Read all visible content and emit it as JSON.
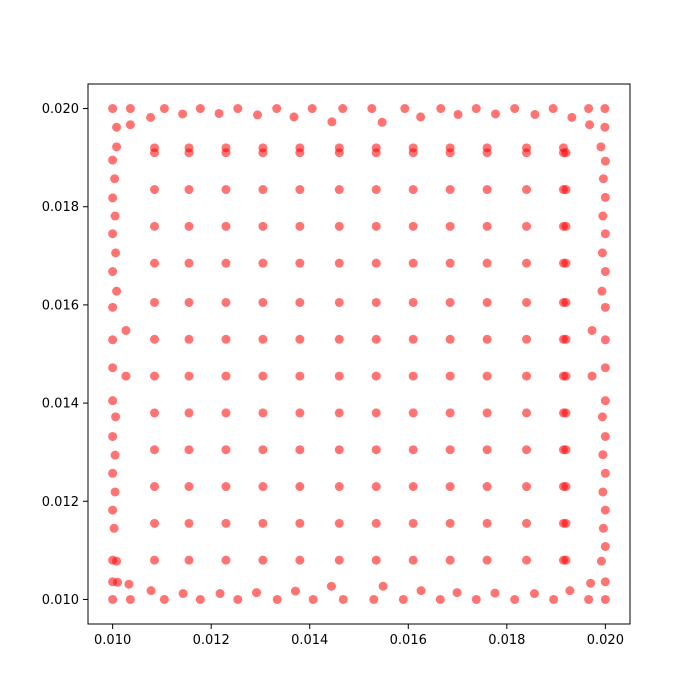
{
  "chart_data": {
    "type": "scatter",
    "title": "",
    "xlabel": "",
    "ylabel": "",
    "xlim": [
      0.0095,
      0.0205
    ],
    "ylim": [
      0.0095,
      0.0205
    ],
    "xticks": [
      "0.010",
      "0.012",
      "0.014",
      "0.016",
      "0.018",
      "0.020"
    ],
    "yticks": [
      "0.010",
      "0.012",
      "0.014",
      "0.016",
      "0.018",
      "0.020"
    ],
    "grid": false,
    "legend": "none",
    "marker_color": "#ff0000",
    "marker_alpha": 0.55,
    "series": [
      {
        "points": [
          [
            0.01,
            0.01
          ],
          [
            0.0101,
            0.01035
          ],
          [
            0.01036,
            0.01
          ],
          [
            0.01033,
            0.01031
          ],
          [
            0.01078,
            0.01018
          ],
          [
            0.01105,
            0.01
          ],
          [
            0.01143,
            0.01012
          ],
          [
            0.01178,
            0.01
          ],
          [
            0.01218,
            0.01012
          ],
          [
            0.01254,
            0.01
          ],
          [
            0.01292,
            0.01014
          ],
          [
            0.01334,
            0.01
          ],
          [
            0.01371,
            0.01017
          ],
          [
            0.01407,
            0.01
          ],
          [
            0.01444,
            0.01027
          ],
          [
            0.01468,
            0.01
          ],
          [
            0.0153,
            0.01
          ],
          [
            0.01549,
            0.01027
          ],
          [
            0.0159,
            0.01
          ],
          [
            0.01626,
            0.01018
          ],
          [
            0.01665,
            0.01
          ],
          [
            0.01699,
            0.01014
          ],
          [
            0.01738,
            0.01
          ],
          [
            0.01776,
            0.01013
          ],
          [
            0.01816,
            0.01
          ],
          [
            0.01856,
            0.01012
          ],
          [
            0.01895,
            0.01
          ],
          [
            0.01928,
            0.01018
          ],
          [
            0.01966,
            0.01
          ],
          [
            0.0197,
            0.01033
          ],
          [
            0.02,
            0.01
          ],
          [
            0.01,
            0.02
          ],
          [
            0.01036,
            0.02
          ],
          [
            0.01008,
            0.01962
          ],
          [
            0.01036,
            0.01967
          ],
          [
            0.01077,
            0.01982
          ],
          [
            0.01105,
            0.02
          ],
          [
            0.01142,
            0.01989
          ],
          [
            0.01178,
            0.02
          ],
          [
            0.01216,
            0.0199
          ],
          [
            0.01254,
            0.02
          ],
          [
            0.01294,
            0.01987
          ],
          [
            0.01333,
            0.02
          ],
          [
            0.01368,
            0.01983
          ],
          [
            0.01405,
            0.02
          ],
          [
            0.01445,
            0.01973
          ],
          [
            0.01467,
            0.02
          ],
          [
            0.01526,
            0.02
          ],
          [
            0.01547,
            0.01972
          ],
          [
            0.01593,
            0.02
          ],
          [
            0.01625,
            0.01983
          ],
          [
            0.01666,
            0.02
          ],
          [
            0.01701,
            0.01988
          ],
          [
            0.01738,
            0.02
          ],
          [
            0.01777,
            0.01989
          ],
          [
            0.01816,
            0.02
          ],
          [
            0.01857,
            0.01988
          ],
          [
            0.01894,
            0.02
          ],
          [
            0.01932,
            0.01982
          ],
          [
            0.01966,
            0.02
          ],
          [
            0.01968,
            0.01967
          ],
          [
            0.01999,
            0.02
          ],
          [
            0.01,
            0.01036
          ],
          [
            0.01,
            0.0108
          ],
          [
            0.01008,
            0.01078
          ],
          [
            0.01003,
            0.01145
          ],
          [
            0.01,
            0.01182
          ],
          [
            0.01005,
            0.01219
          ],
          [
            0.01,
            0.01257
          ],
          [
            0.01005,
            0.01294
          ],
          [
            0.01,
            0.01332
          ],
          [
            0.01006,
            0.01372
          ],
          [
            0.01,
            0.01405
          ],
          [
            0.01,
            0.01472
          ],
          [
            0.01027,
            0.01455
          ],
          [
            0.01027,
            0.01548
          ],
          [
            0.01,
            0.01529
          ],
          [
            0.01,
            0.01595
          ],
          [
            0.01008,
            0.01628
          ],
          [
            0.01,
            0.01668
          ],
          [
            0.01006,
            0.01706
          ],
          [
            0.01,
            0.01745
          ],
          [
            0.01005,
            0.01781
          ],
          [
            0.01,
            0.01818
          ],
          [
            0.01004,
            0.01857
          ],
          [
            0.01,
            0.01895
          ],
          [
            0.01008,
            0.01922
          ],
          [
            0.02,
            0.01036
          ],
          [
            0.02,
            0.01108
          ],
          [
            0.01992,
            0.01078
          ],
          [
            0.01996,
            0.01145
          ],
          [
            0.02,
            0.01182
          ],
          [
            0.01995,
            0.01219
          ],
          [
            0.02,
            0.01257
          ],
          [
            0.01995,
            0.01295
          ],
          [
            0.02,
            0.01332
          ],
          [
            0.01994,
            0.01372
          ],
          [
            0.02,
            0.01405
          ],
          [
            0.02,
            0.01472
          ],
          [
            0.01973,
            0.01455
          ],
          [
            0.01973,
            0.01548
          ],
          [
            0.02,
            0.01529
          ],
          [
            0.02,
            0.01595
          ],
          [
            0.01993,
            0.01628
          ],
          [
            0.02,
            0.01668
          ],
          [
            0.01994,
            0.01706
          ],
          [
            0.02,
            0.01745
          ],
          [
            0.01995,
            0.01781
          ],
          [
            0.02,
            0.01819
          ],
          [
            0.01996,
            0.01857
          ],
          [
            0.02,
            0.01893
          ],
          [
            0.01991,
            0.01922
          ],
          [
            0.01999,
            0.01962
          ]
        ],
        "grid": {
          "x": [
            0.01085,
            0.01155,
            0.0123,
            0.01305,
            0.0138,
            0.0146,
            0.01535,
            0.0161,
            0.01685,
            0.0176,
            0.0184,
            0.01915
          ],
          "y": [
            0.0108,
            0.01155,
            0.0123,
            0.01305,
            0.0138,
            0.01455,
            0.0153,
            0.01605,
            0.01685,
            0.0176,
            0.01835,
            0.0191
          ],
          "y_top_row": 0.0192,
          "x_right_col": 0.0192
        }
      }
    ]
  }
}
